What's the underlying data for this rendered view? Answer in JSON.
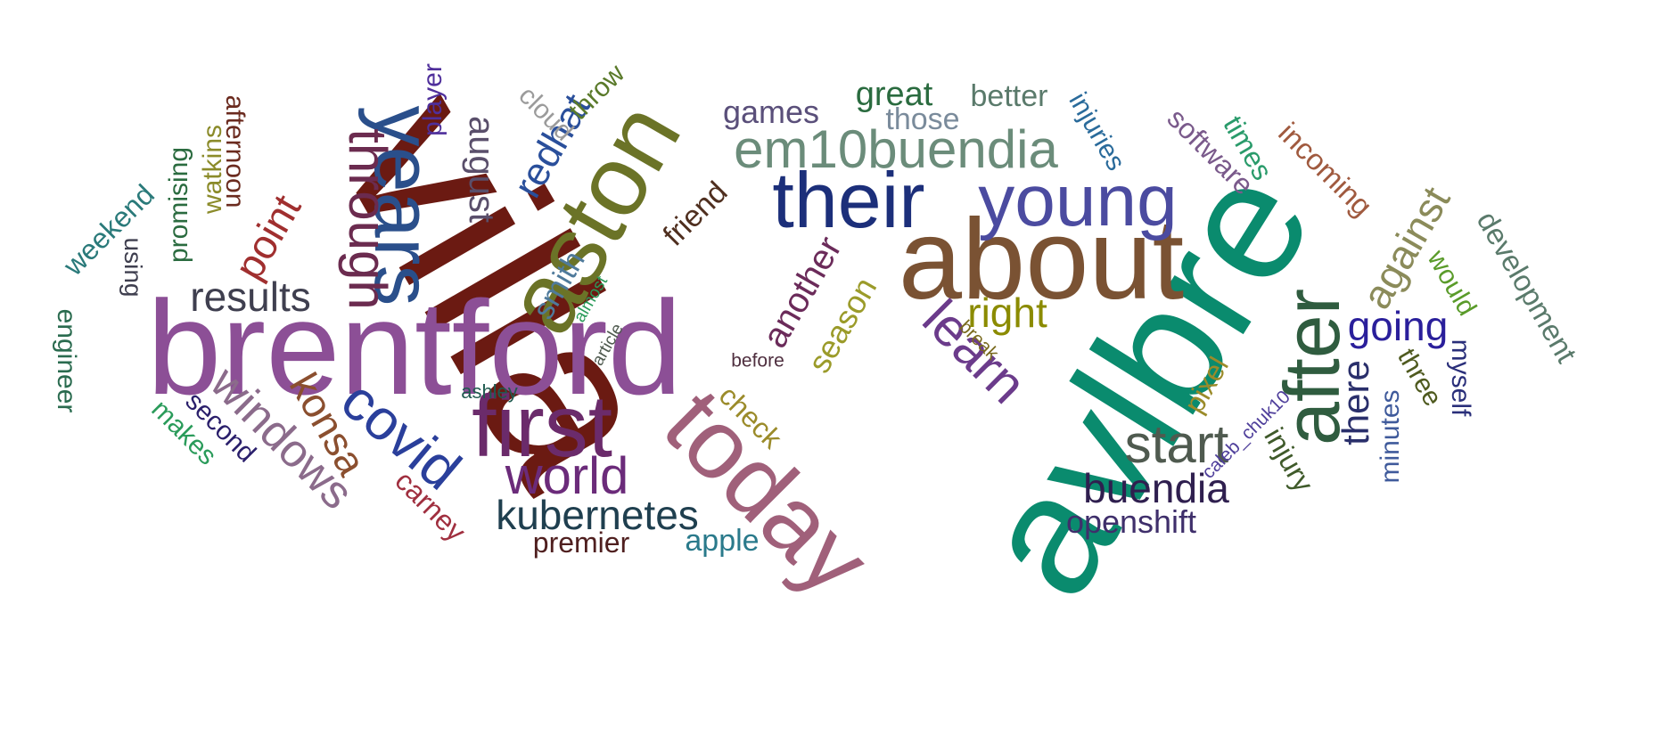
{
  "words": [
    {
      "text": "villa",
      "color": "#6b1a12"
    },
    {
      "text": "avlbre",
      "color": "#0a8b6e"
    },
    {
      "text": "brentford",
      "color": "#8c4f96"
    },
    {
      "text": "about",
      "color": "#7a5233"
    },
    {
      "text": "aston",
      "color": "#6b7327"
    },
    {
      "text": "their",
      "color": "#1c2f7a"
    },
    {
      "text": "young",
      "color": "#4b4ba0"
    },
    {
      "text": "today",
      "color": "#a0607a"
    },
    {
      "text": "first",
      "color": "#6b2b6b"
    },
    {
      "text": "years",
      "color": "#2a4f8b"
    },
    {
      "text": "after",
      "color": "#2f5c3f"
    },
    {
      "text": "em10buendia",
      "color": "#6b8c7a"
    },
    {
      "text": "through",
      "color": "#6b2b4f"
    },
    {
      "text": "covid",
      "color": "#2a3f9b"
    },
    {
      "text": "learn",
      "color": "#6b3b8b"
    },
    {
      "text": "world",
      "color": "#6b2b7a"
    },
    {
      "text": "start",
      "color": "#4f5a4f"
    },
    {
      "text": "results",
      "color": "#3f3f4f"
    },
    {
      "text": "kubernetes",
      "color": "#1f3f4f"
    },
    {
      "text": "buendia",
      "color": "#2f1f4f"
    },
    {
      "text": "right",
      "color": "#8b8b00"
    },
    {
      "text": "going",
      "color": "#2a1f9b"
    },
    {
      "text": "windows",
      "color": "#8b6b8b"
    },
    {
      "text": "konsa",
      "color": "#8b4f2f"
    },
    {
      "text": "point",
      "color": "#a02f2f"
    },
    {
      "text": "against",
      "color": "#8b8b5a"
    },
    {
      "text": "there",
      "color": "#2a2f6b"
    },
    {
      "text": "redhat",
      "color": "#2a4f9b"
    },
    {
      "text": "another",
      "color": "#6b2b5a"
    },
    {
      "text": "openshift",
      "color": "#3f2f6b"
    },
    {
      "text": "season",
      "color": "#9b9b2a"
    },
    {
      "text": "august",
      "color": "#5a4f6b"
    },
    {
      "text": "development",
      "color": "#5a7a6b"
    },
    {
      "text": "games",
      "color": "#5a4f7a"
    },
    {
      "text": "better",
      "color": "#5a7a6b"
    },
    {
      "text": "great",
      "color": "#2a6b3f"
    },
    {
      "text": "those",
      "color": "#7a8b9b"
    },
    {
      "text": "software",
      "color": "#7a5a8b"
    },
    {
      "text": "incoming",
      "color": "#a05a3f"
    },
    {
      "text": "injuries",
      "color": "#2a6b9b"
    },
    {
      "text": "times",
      "color": "#2a9b6b"
    },
    {
      "text": "pixel",
      "color": "#9b8b2a"
    },
    {
      "text": "injury",
      "color": "#3f5a2a"
    },
    {
      "text": "check",
      "color": "#9b8b2a"
    },
    {
      "text": "minutes",
      "color": "#3f5a9b"
    },
    {
      "text": "myself",
      "color": "#2a2f7a"
    },
    {
      "text": "three",
      "color": "#4f5a1f"
    },
    {
      "text": "would",
      "color": "#5a9b2a"
    },
    {
      "text": "smith",
      "color": "#4f7a9b"
    },
    {
      "text": "friend",
      "color": "#4f2f1f"
    },
    {
      "text": "premier",
      "color": "#4f1f1f"
    },
    {
      "text": "apple",
      "color": "#2a7a8b"
    },
    {
      "text": "carney",
      "color": "#a02f3f"
    },
    {
      "text": "second",
      "color": "#2a1f6b"
    },
    {
      "text": "makes",
      "color": "#2a9b5a"
    },
    {
      "text": "ashley",
      "color": "#1f5a4f"
    },
    {
      "text": "player",
      "color": "#4f2f9b"
    },
    {
      "text": "cloud",
      "color": "#9b9b9b"
    },
    {
      "text": "throw",
      "color": "#5a7a2a"
    },
    {
      "text": "afternoon",
      "color": "#6b2b1f"
    },
    {
      "text": "watkins",
      "color": "#8b8b2a"
    },
    {
      "text": "promising",
      "color": "#2a6b3f"
    },
    {
      "text": "using",
      "color": "#3f3f4f"
    },
    {
      "text": "weekend",
      "color": "#2a7a7a"
    },
    {
      "text": "engineer",
      "color": "#2a6b4f"
    },
    {
      "text": "almost",
      "color": "#2a9b5a"
    },
    {
      "text": "article",
      "color": "#4f5a4f"
    },
    {
      "text": "before",
      "color": "#4f2f3f"
    },
    {
      "text": "break",
      "color": "#7a6b1f"
    },
    {
      "text": "caleb_chuk10",
      "color": "#4f3f9b"
    }
  ]
}
